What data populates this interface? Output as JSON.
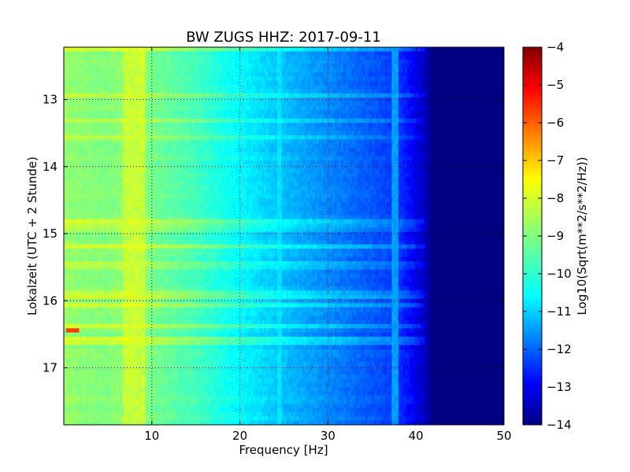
{
  "chart_data": {
    "type": "heatmap",
    "title": "BW ZUGS HHZ: 2017-09-11",
    "xlabel": "Frequency [Hz]",
    "ylabel": "Lokalzeit (UTC + 2 Stunde)",
    "xlim": [
      0,
      50
    ],
    "ylim": [
      12.22,
      17.85
    ],
    "y_inverted": true,
    "x_ticks": [
      10,
      20,
      30,
      40,
      50
    ],
    "y_ticks": [
      13,
      14,
      15,
      16,
      17
    ],
    "grid": true,
    "colormap": "jet",
    "colorbar": {
      "label": "Log10(Sqrt(m**2/s**2/Hz))",
      "range": [
        -14,
        -4
      ],
      "ticks": [
        -4,
        -5,
        -6,
        -7,
        -8,
        -9,
        -10,
        -11,
        -12,
        -13,
        -14
      ]
    },
    "z_profile": {
      "frequency_hz": [
        0,
        2,
        5,
        8,
        10,
        15,
        20,
        25,
        30,
        35,
        38,
        40,
        41,
        42,
        50
      ],
      "log10_amplitude": [
        -8.8,
        -8.9,
        -9.0,
        -8.7,
        -9.1,
        -9.6,
        -10.3,
        -10.9,
        -11.4,
        -11.9,
        -12.2,
        -12.9,
        -13.4,
        -14,
        -14
      ]
    },
    "features": [
      {
        "frequency_hz": 8,
        "description": "band",
        "log10_amplitude": -8.3
      },
      {
        "frequency_hz": 24.5,
        "description": "line",
        "log10_amplitude": -10.5
      },
      {
        "frequency_hz": 37.7,
        "description": "line",
        "log10_amplitude": -11.2
      },
      {
        "frequency_hz": 1.0,
        "time": 16.42,
        "log10_amplitude": -5.8
      }
    ]
  }
}
